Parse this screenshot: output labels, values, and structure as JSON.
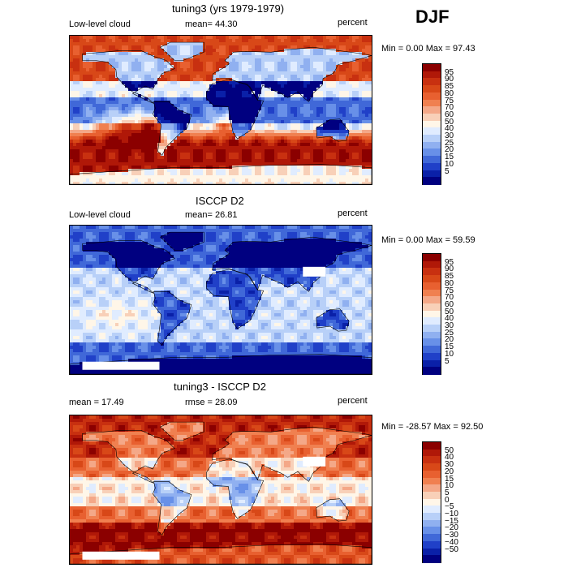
{
  "season": "DJF",
  "panels": [
    {
      "id": "model",
      "title": "tuning3 (yrs 1979-1979)",
      "left_label": "Low-level cloud",
      "mid_label": "mean=  44.30",
      "right_label": "percent",
      "minmax": "Min =    0.00 Max =   97.43",
      "scheme": "abs",
      "labels": [
        "95",
        "90",
        "85",
        "80",
        "75",
        "70",
        "60",
        "50",
        "40",
        "30",
        "25",
        "20",
        "15",
        "10",
        "5"
      ]
    },
    {
      "id": "obs",
      "title": "ISCCP D2",
      "left_label": "Low-level cloud",
      "mid_label": "mean=  26.81",
      "right_label": "percent",
      "minmax": "Min =    0.00 Max =   59.59",
      "scheme": "abs",
      "labels": [
        "95",
        "90",
        "85",
        "80",
        "75",
        "70",
        "60",
        "50",
        "40",
        "30",
        "25",
        "20",
        "15",
        "10",
        "5"
      ]
    },
    {
      "id": "diff",
      "title": "tuning3 - ISCCP D2",
      "left_label": "mean =   17.49",
      "mid_label": "rmse =   28.09",
      "right_label": "percent",
      "minmax": "Min = -28.57 Max =   92.50",
      "scheme": "diff",
      "labels": [
        "50",
        "40",
        "30",
        "20",
        "15",
        "10",
        "5",
        "0",
        "−5",
        "−10",
        "−15",
        "−20",
        "−30",
        "−40",
        "−50"
      ]
    }
  ],
  "colors": {
    "abs_scale": [
      "#8b0000",
      "#b01808",
      "#c83010",
      "#d84818",
      "#e86030",
      "#f08050",
      "#f4a888",
      "#f8d0b8",
      "#fff6e8",
      "#e0ecff",
      "#b8d0f8",
      "#90b0f0",
      "#6890e8",
      "#4068d8",
      "#2040c8",
      "#0a20a8",
      "#000080"
    ],
    "diff_scale": [
      "#8b0000",
      "#b01808",
      "#c83010",
      "#d84818",
      "#e86030",
      "#f08050",
      "#f4a888",
      "#f8d0b8",
      "#fff6e8",
      "#e0ecff",
      "#b8d0f8",
      "#90b0f0",
      "#6890e8",
      "#4068d8",
      "#2040c8",
      "#0a20a8",
      "#000080"
    ]
  }
}
